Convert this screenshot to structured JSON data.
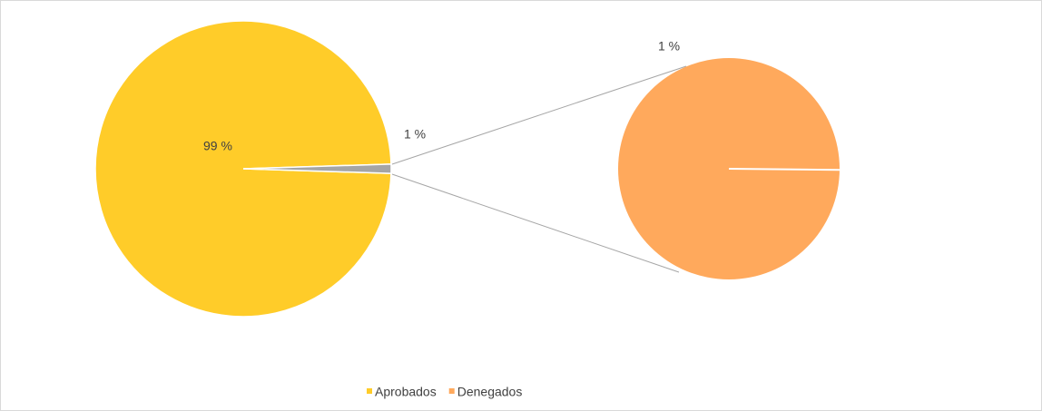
{
  "chart_data": {
    "type": "pie-of-pie",
    "main": {
      "values": [
        99,
        1
      ],
      "value_labels": [
        "99 %",
        "1 %"
      ],
      "colors": [
        "#FFCC29",
        "#A5A5A5"
      ]
    },
    "secondary": {
      "values": [
        1
      ],
      "value_labels": [
        "1 %"
      ],
      "colors": [
        "#FFA95C"
      ]
    },
    "legend": {
      "position": "bottom",
      "names": [
        "Aprobados",
        "Denegados"
      ],
      "colors": [
        "#FFCC29",
        "#FFA95C"
      ]
    }
  }
}
